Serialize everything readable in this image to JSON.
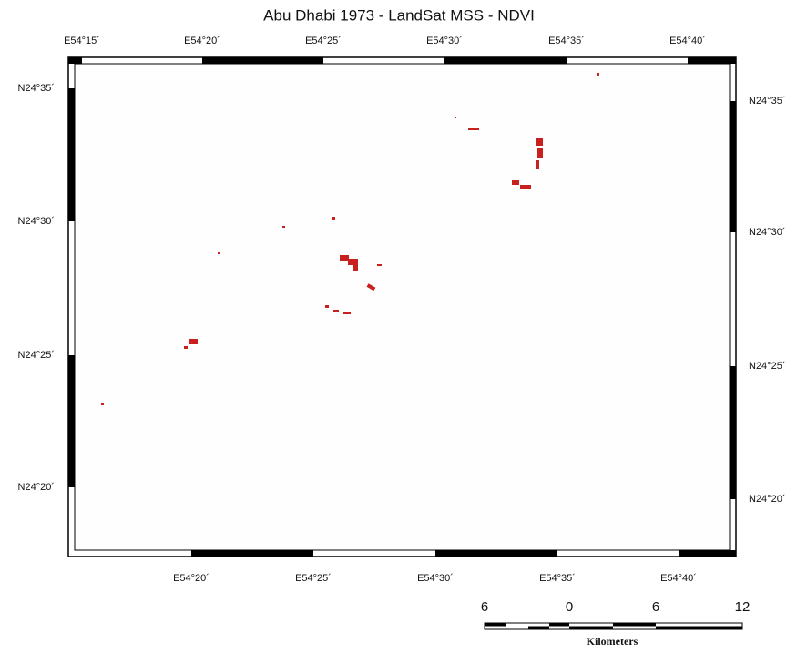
{
  "title": "Abu Dhabi 1973 - LandSat MSS - NDVI",
  "top_labels": [
    "E54°15´",
    "E54°20´",
    "E54°25´",
    "E54°30´",
    "E54°35´",
    "E54°40´"
  ],
  "bottom_labels": [
    "E54°20´",
    "E54°25´",
    "E54°30´",
    "E54°35´",
    "E54°40´"
  ],
  "left_labels": [
    "N24°35´",
    "N24°30´",
    "N24°25´",
    "N24°20´"
  ],
  "right_labels": [
    "N24°35´",
    "N24°30´",
    "N24°25´",
    "N24°20´"
  ],
  "scale_labels": [
    "6",
    "0",
    "6",
    "12"
  ],
  "scale_unit": "Kilometers"
}
